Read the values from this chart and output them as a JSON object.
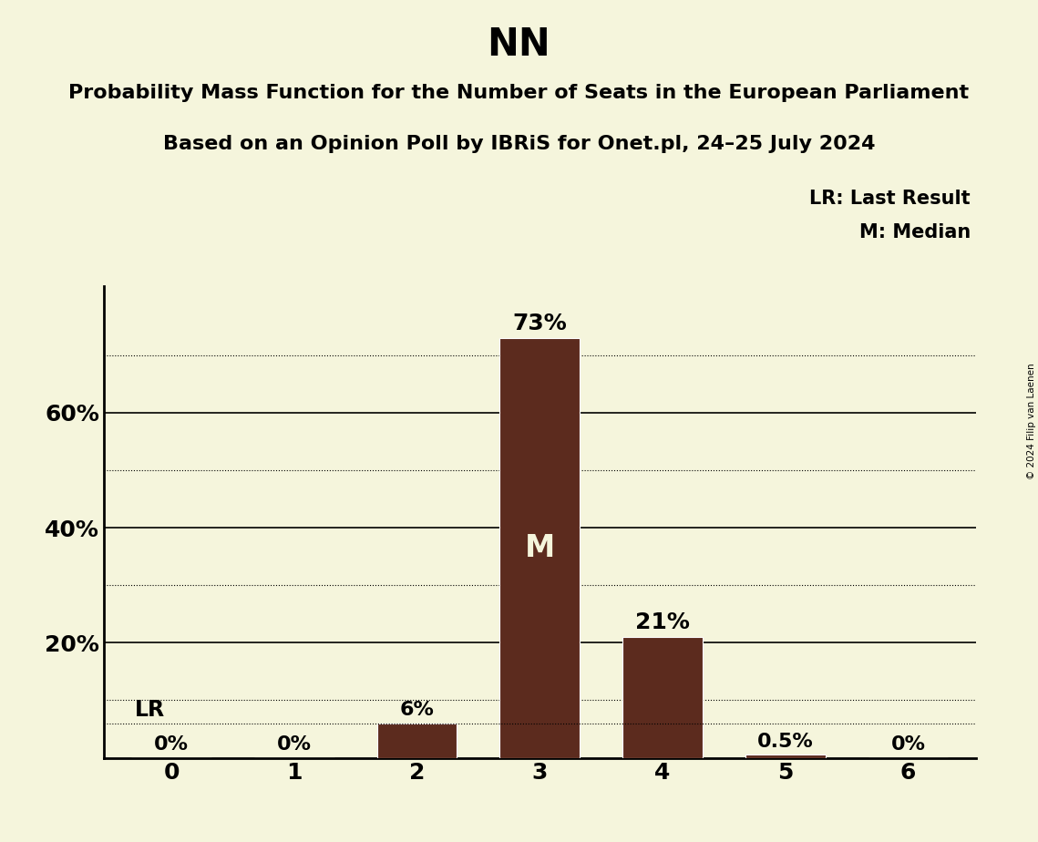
{
  "title": "NN",
  "subtitle1": "Probability Mass Function for the Number of Seats in the European Parliament",
  "subtitle2": "Based on an Opinion Poll by IBRiS for Onet.pl, 24–25 July 2024",
  "copyright": "© 2024 Filip van Laenen",
  "categories": [
    0,
    1,
    2,
    3,
    4,
    5,
    6
  ],
  "values": [
    0.0,
    0.0,
    0.06,
    0.73,
    0.21,
    0.005,
    0.0
  ],
  "bar_color": "#5C2B1E",
  "background_color": "#F5F5DC",
  "median_bar_idx": 3,
  "lr_value": 0.06,
  "annotations": {
    "0": "0%",
    "1": "0%",
    "2": "6%",
    "3": "73%",
    "4": "21%",
    "5": "0.5%",
    "6": "0%"
  },
  "legend_lr": "LR: Last Result",
  "legend_m": "M: Median",
  "solid_lines": [
    0.2,
    0.4,
    0.6
  ],
  "dotted_lines": [
    0.1,
    0.3,
    0.5,
    0.7
  ],
  "ytick_positions": [
    0.2,
    0.4,
    0.6
  ],
  "ytick_labels": [
    "20%",
    "40%",
    "60%"
  ],
  "ylim": [
    0,
    0.82
  ],
  "xlim": [
    -0.55,
    6.55
  ],
  "title_fontsize": 30,
  "subtitle_fontsize": 16,
  "legend_fontsize": 15,
  "bar_label_fontsize_large": 18,
  "bar_label_fontsize_small": 16,
  "ytick_fontsize": 18,
  "xtick_fontsize": 18,
  "bar_width": 0.65
}
